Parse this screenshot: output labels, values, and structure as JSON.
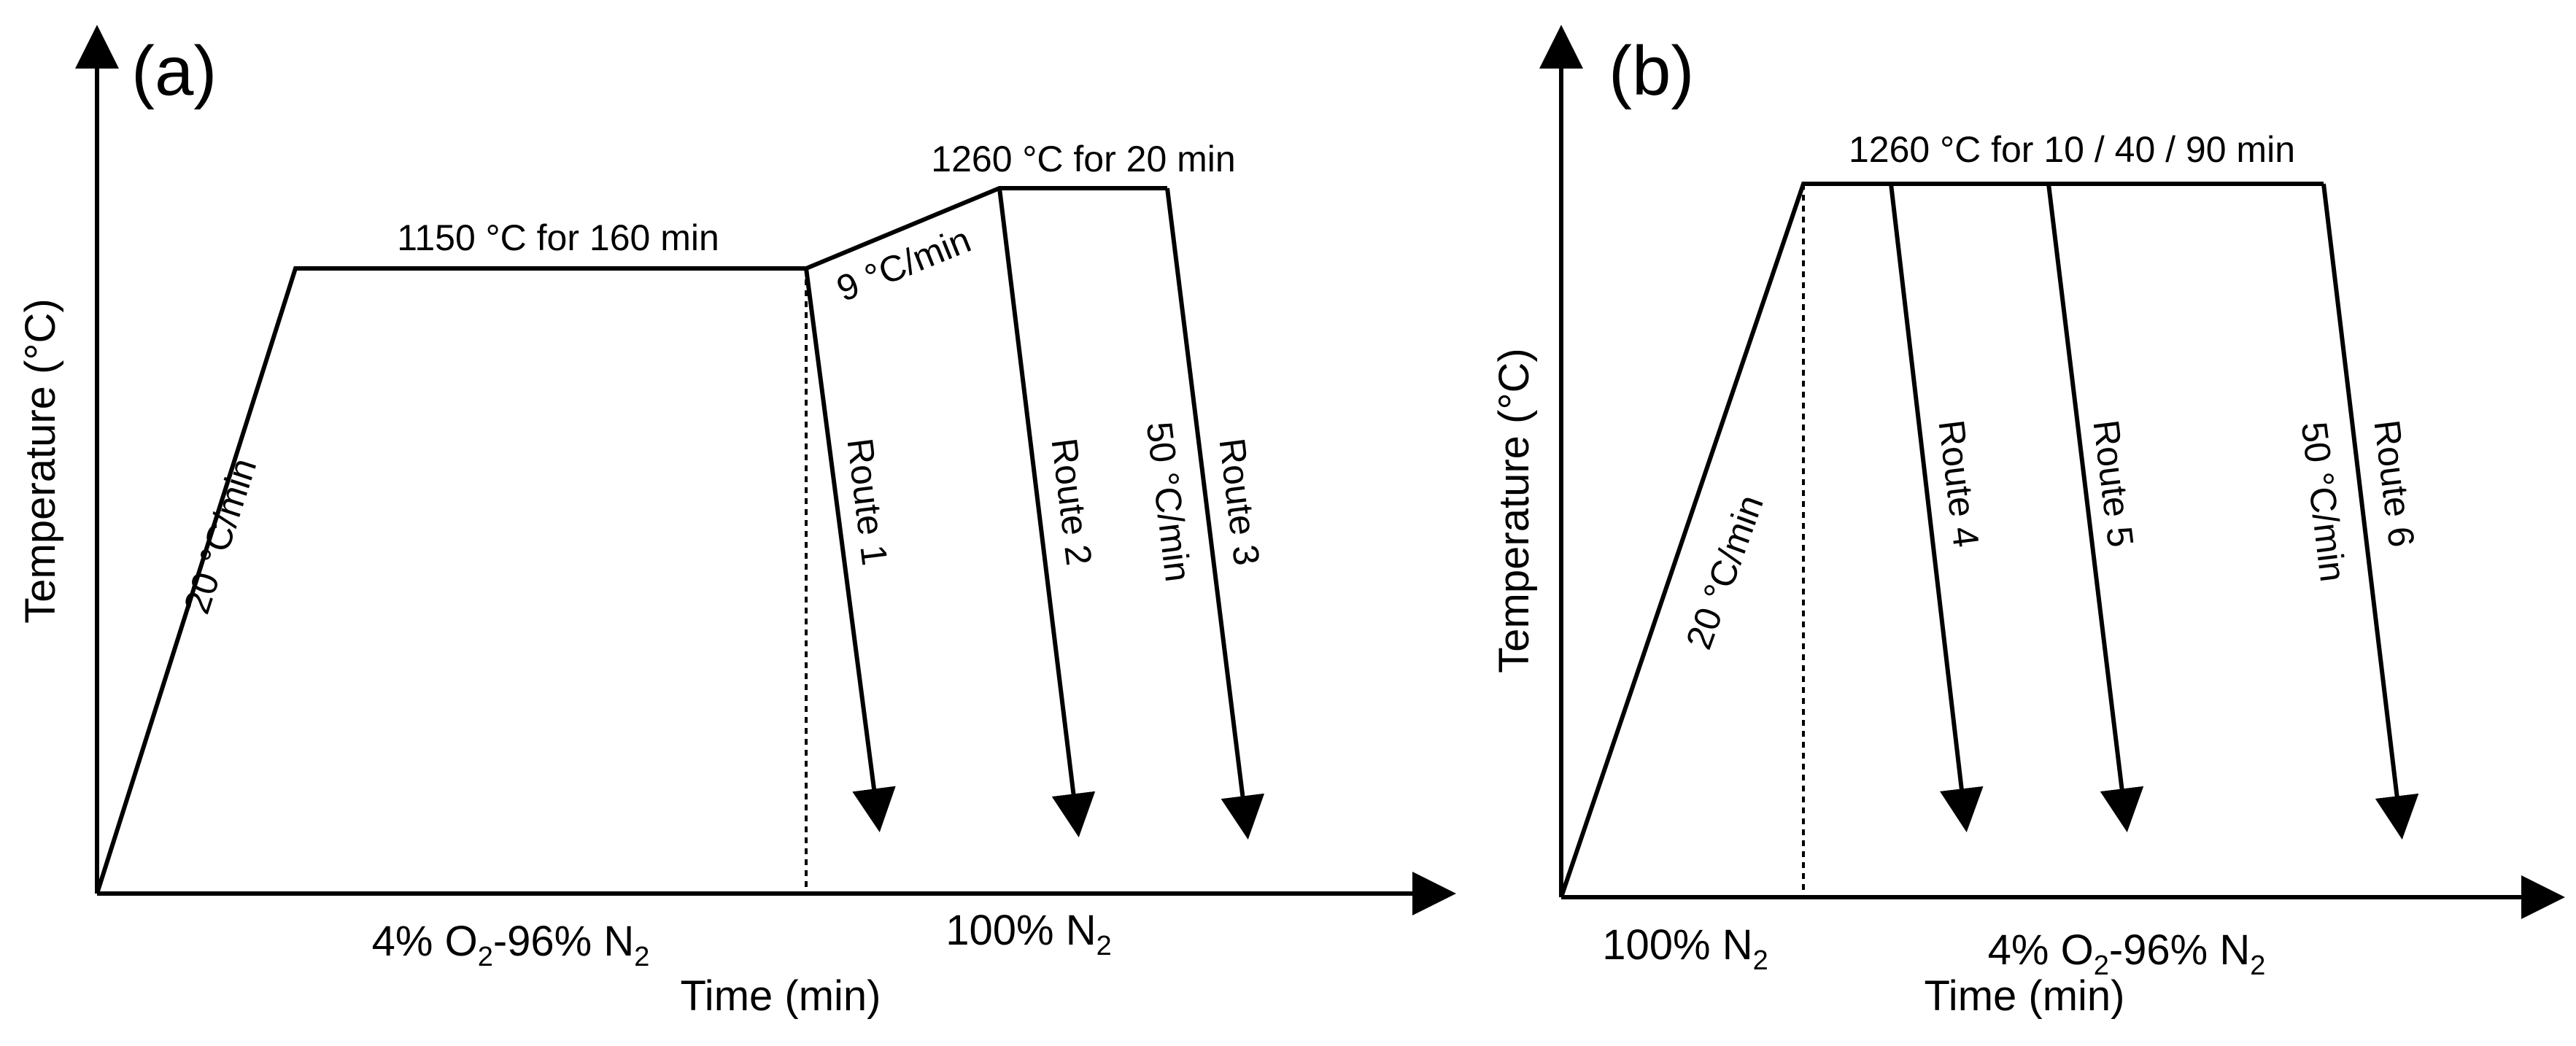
{
  "panel_a": {
    "label": "(a)",
    "y_axis_title": "Temperature (°C)",
    "x_axis_title": "Time (min)",
    "heating_rate": "20 °C/min",
    "hold_1": "1150 °C for 160 min",
    "ramp_rate": "9 °C/min",
    "hold_2": "1260 °C for 20 min",
    "cooling_rate": "50 °C/min",
    "routes": [
      "Route 1",
      "Route 2",
      "Route 3"
    ],
    "atmosphere_1": {
      "main": "4% O",
      "sub1": "2",
      "mid": "-96% N",
      "sub2": "2"
    },
    "atmosphere_2": {
      "main": "100% N",
      "sub": "2"
    }
  },
  "panel_b": {
    "label": "(b)",
    "y_axis_title": "Temperature (°C)",
    "x_axis_title": "Time (min)",
    "heating_rate": "20 °C/min",
    "hold": "1260 °C for 10 / 40 / 90 min",
    "cooling_rate": "50 °C/min",
    "routes": [
      "Route 4",
      "Route 5",
      "Route 6"
    ],
    "atmosphere_1": {
      "main": "100% N",
      "sub": "2"
    },
    "atmosphere_2": {
      "main": "4% O",
      "sub1": "2",
      "mid": "-96% N",
      "sub2": "2"
    }
  }
}
